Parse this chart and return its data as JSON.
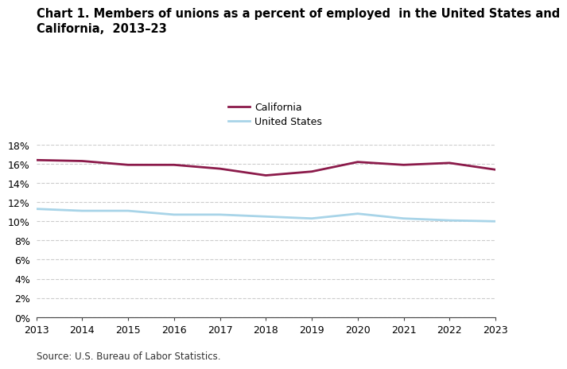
{
  "title_line1": "Chart 1. Members of unions as a percent of employed  in the United States and",
  "title_line2": "California,  2013–23",
  "years": [
    2013,
    2014,
    2015,
    2016,
    2017,
    2018,
    2019,
    2020,
    2021,
    2022,
    2023
  ],
  "california": [
    16.4,
    16.3,
    15.9,
    15.9,
    15.5,
    14.8,
    15.2,
    16.2,
    15.9,
    16.1,
    15.4
  ],
  "united_states": [
    11.3,
    11.1,
    11.1,
    10.7,
    10.7,
    10.5,
    10.3,
    10.8,
    10.3,
    10.1,
    10.0
  ],
  "california_color": "#8b1a4a",
  "us_color": "#a8d4e8",
  "ylim": [
    0,
    18
  ],
  "yticks": [
    0,
    2,
    4,
    6,
    8,
    10,
    12,
    14,
    16,
    18
  ],
  "source_text": "Source: U.S. Bureau of Labor Statistics.",
  "legend_labels": [
    "California",
    "United States"
  ],
  "background_color": "#ffffff",
  "grid_color": "#cccccc",
  "line_width": 2.0,
  "title_fontsize": 10.5,
  "tick_fontsize": 9,
  "source_fontsize": 8.5
}
